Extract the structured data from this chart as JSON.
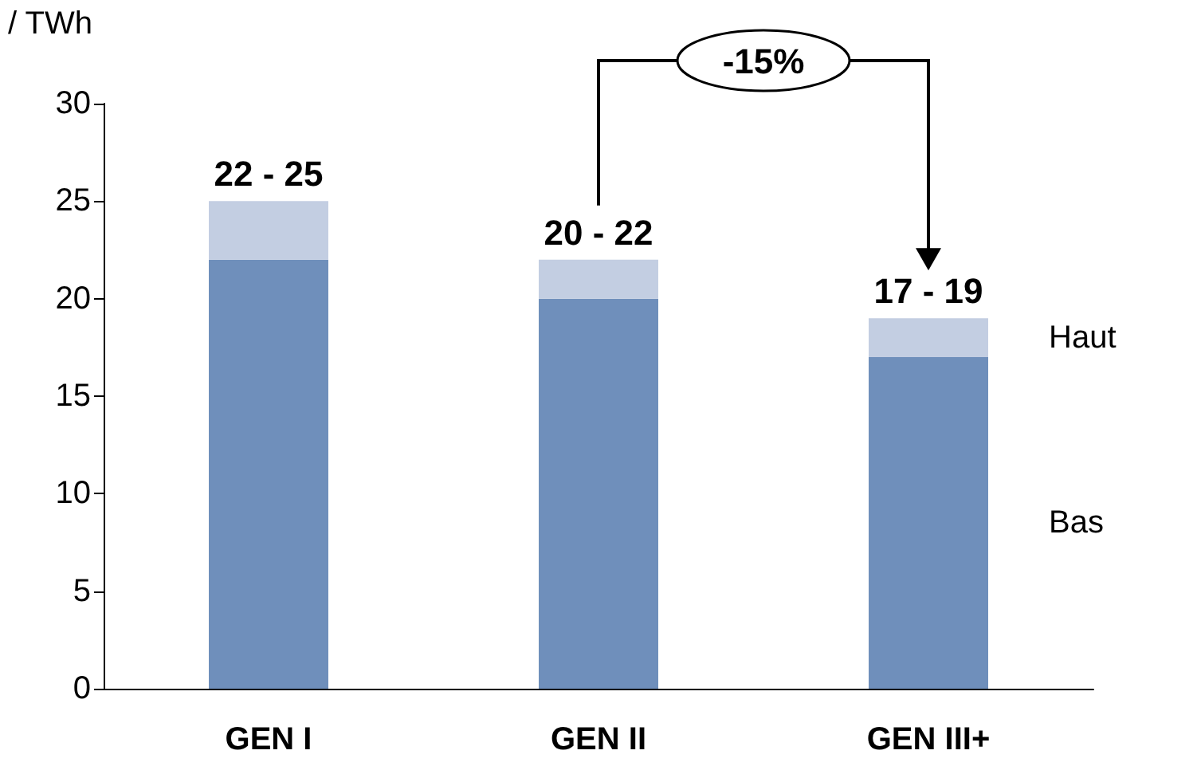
{
  "chart_data": {
    "type": "bar",
    "ylabel": "/ TWh",
    "categories": [
      "GEN I",
      "GEN II",
      "GEN III+"
    ],
    "stacked": true,
    "series": [
      {
        "name": "Bas",
        "color": "#6f8fbb",
        "values": [
          22,
          20,
          17
        ]
      },
      {
        "name": "Haut",
        "color": "#c3cee2",
        "values": [
          3,
          2,
          2
        ]
      }
    ],
    "ylim": [
      0,
      30
    ],
    "yticks": [
      0,
      5,
      10,
      15,
      20,
      25,
      30
    ],
    "grid": false,
    "legend": false,
    "annotations": [
      {
        "text": "22 - 25",
        "x": "GEN I",
        "y": 25
      },
      {
        "text": "20 - 22",
        "x": "GEN II",
        "y": 22
      },
      {
        "text": "17 - 19",
        "x": "GEN III+",
        "y": 19
      },
      "-15%"
    ]
  }
}
